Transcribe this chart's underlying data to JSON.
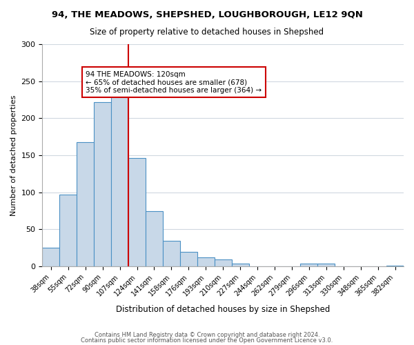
{
  "title": "94, THE MEADOWS, SHEPSHED, LOUGHBOROUGH, LE12 9QN",
  "subtitle": "Size of property relative to detached houses in Shepshed",
  "xlabel": "Distribution of detached houses by size in Shepshed",
  "ylabel": "Number of detached properties",
  "footer_line1": "Contains HM Land Registry data © Crown copyright and database right 2024.",
  "footer_line2": "Contains public sector information licensed under the Open Government Licence v3.0.",
  "bar_labels": [
    "38sqm",
    "55sqm",
    "72sqm",
    "90sqm",
    "107sqm",
    "124sqm",
    "141sqm",
    "158sqm",
    "176sqm",
    "193sqm",
    "210sqm",
    "227sqm",
    "244sqm",
    "262sqm",
    "279sqm",
    "296sqm",
    "313sqm",
    "330sqm",
    "348sqm",
    "365sqm",
    "382sqm"
  ],
  "bar_values": [
    25,
    97,
    168,
    222,
    238,
    146,
    75,
    35,
    20,
    12,
    9,
    4,
    0,
    0,
    0,
    4,
    4,
    0,
    0,
    0,
    1
  ],
  "bar_color": "#c8d8e8",
  "bar_edge_color": "#4a90c4",
  "vline_x": 5,
  "vline_color": "#cc0000",
  "annotation_text": "94 THE MEADOWS: 120sqm\n← 65% of detached houses are smaller (678)\n35% of semi-detached houses are larger (364) →",
  "annotation_box_color": "#ffffff",
  "annotation_box_edge": "#cc0000",
  "ylim": [
    0,
    300
  ],
  "yticks": [
    0,
    50,
    100,
    150,
    200,
    250,
    300
  ],
  "background_color": "#ffffff",
  "grid_color": "#d0d8e0"
}
